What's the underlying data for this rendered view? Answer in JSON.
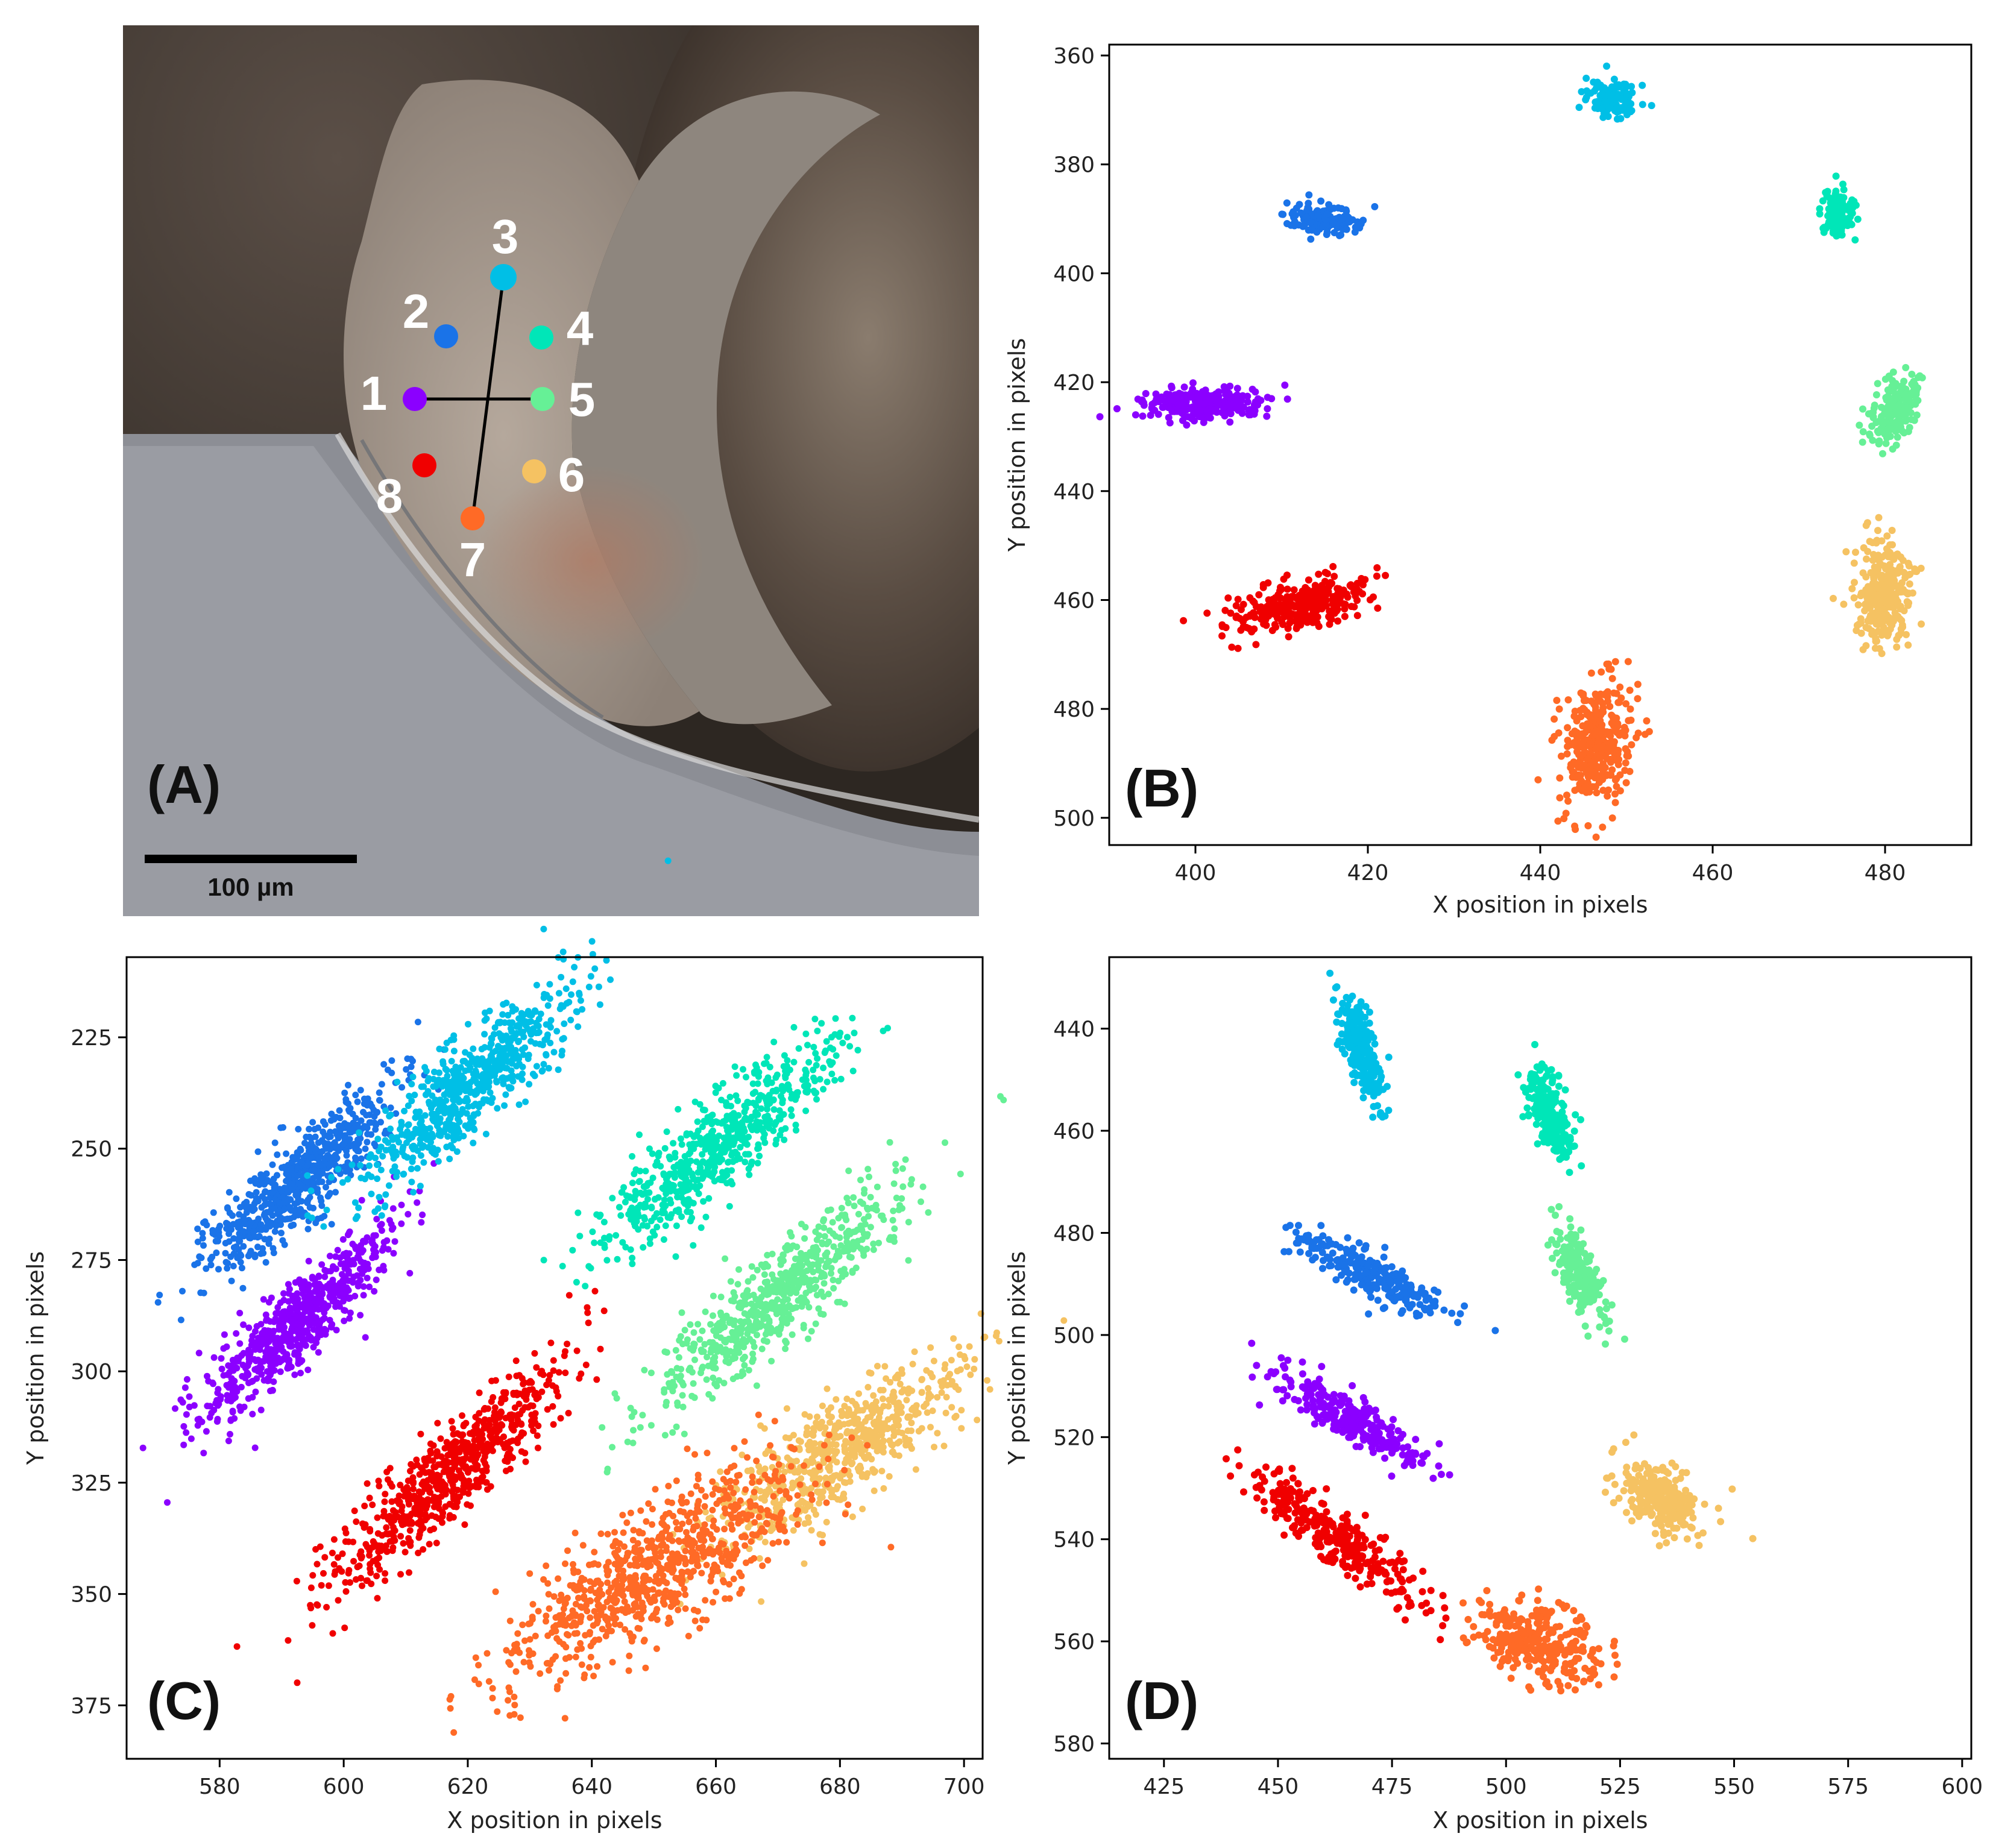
{
  "colors": {
    "1": "#8b00ff",
    "2": "#1a73e8",
    "3": "#00bfe6",
    "4": "#00e6b8",
    "5": "#66f096",
    "6": "#f5c262",
    "7": "#ff6a26",
    "8": "#f00000"
  },
  "panel_a": {
    "letter": "(A)",
    "scale_bar_label": "100 µm",
    "markers": [
      {
        "id": "1",
        "label": "1"
      },
      {
        "id": "2",
        "label": "2"
      },
      {
        "id": "3",
        "label": "3"
      },
      {
        "id": "4",
        "label": "4"
      },
      {
        "id": "5",
        "label": "5"
      },
      {
        "id": "6",
        "label": "6"
      },
      {
        "id": "7",
        "label": "7"
      },
      {
        "id": "8",
        "label": "8"
      }
    ]
  },
  "chart_data": [
    {
      "panel": "(B)",
      "type": "scatter",
      "xlabel": "X position in pixels",
      "ylabel": "Y position in pixels",
      "xlim": [
        390,
        490
      ],
      "ylim": [
        505,
        358
      ],
      "y_inverted": true,
      "xticks": [
        400,
        420,
        440,
        460,
        480
      ],
      "yticks": [
        360,
        380,
        400,
        420,
        440,
        460,
        480,
        500
      ],
      "clusters": [
        {
          "id": "1",
          "center": [
            401,
            424
          ],
          "spread": [
            3.5,
            1.5
          ],
          "angle": -0.05,
          "n": 260
        },
        {
          "id": "2",
          "center": [
            415,
            390
          ],
          "spread": [
            2.4,
            1.2
          ],
          "angle": 0.15,
          "n": 150
        },
        {
          "id": "3",
          "center": [
            448.5,
            368
          ],
          "spread": [
            1.4,
            1.5
          ],
          "angle": 0,
          "n": 130
        },
        {
          "id": "4",
          "center": [
            474.5,
            389
          ],
          "spread": [
            1.0,
            2.4
          ],
          "angle": 0,
          "n": 130
        },
        {
          "id": "5",
          "center": [
            481,
            425
          ],
          "spread": [
            1.2,
            3.5
          ],
          "angle": 0.25,
          "n": 180
        },
        {
          "id": "6",
          "center": [
            480,
            459
          ],
          "spread": [
            1.6,
            4.5
          ],
          "angle": 0,
          "n": 300
        },
        {
          "id": "7",
          "center": [
            446.5,
            486
          ],
          "spread": [
            2.0,
            6.0
          ],
          "angle": 0.1,
          "n": 320
        },
        {
          "id": "8",
          "center": [
            412,
            461
          ],
          "spread": [
            4.0,
            2.2
          ],
          "angle": -0.45,
          "n": 300
        }
      ]
    },
    {
      "panel": "(C)",
      "type": "scatter",
      "xlabel": "X position in pixels",
      "ylabel": "Y position in pixels",
      "xlim": [
        565,
        703
      ],
      "ylim": [
        387,
        207
      ],
      "y_inverted": true,
      "xticks": [
        580,
        600,
        620,
        640,
        660,
        680,
        700
      ],
      "yticks": [
        225,
        250,
        275,
        300,
        325,
        350,
        375
      ],
      "clusters": [
        {
          "id": "1",
          "center": [
            592,
            290
          ],
          "spread": [
            13.0,
            3.0
          ],
          "angle": -0.95,
          "n": 650
        },
        {
          "id": "2",
          "center": [
            593,
            257
          ],
          "spread": [
            12.5,
            3.0
          ],
          "angle": -0.95,
          "n": 650
        },
        {
          "id": "3",
          "center": [
            620,
            236
          ],
          "spread": [
            14.0,
            3.5
          ],
          "angle": -0.95,
          "n": 650
        },
        {
          "id": "4",
          "center": [
            660,
            250
          ],
          "spread": [
            15.5,
            3.5
          ],
          "angle": -0.9,
          "n": 650
        },
        {
          "id": "5",
          "center": [
            670,
            283
          ],
          "spread": [
            16.0,
            3.5
          ],
          "angle": -0.9,
          "n": 650
        },
        {
          "id": "6",
          "center": [
            680,
            318
          ],
          "spread": [
            14.0,
            4.5
          ],
          "angle": -0.8,
          "n": 650
        },
        {
          "id": "7",
          "center": [
            650,
            345
          ],
          "spread": [
            16.0,
            5.5
          ],
          "angle": -0.8,
          "n": 800
        },
        {
          "id": "8",
          "center": [
            617,
            323
          ],
          "spread": [
            15.5,
            3.5
          ],
          "angle": -0.95,
          "n": 700
        }
      ]
    },
    {
      "panel": "(D)",
      "type": "scatter",
      "xlabel": "X position in pixels",
      "ylabel": "Y position in pixels",
      "xlim": [
        413,
        602
      ],
      "ylim": [
        583,
        426
      ],
      "y_inverted": true,
      "xticks": [
        425,
        450,
        475,
        500,
        525,
        550,
        575,
        600
      ],
      "yticks": [
        440,
        460,
        480,
        500,
        520,
        540,
        560,
        580
      ],
      "clusters": [
        {
          "id": "1",
          "center": [
            465,
            516
          ],
          "spread": [
            9.0,
            2.0
          ],
          "angle": 0.5,
          "n": 260
        },
        {
          "id": "2",
          "center": [
            470,
            488
          ],
          "spread": [
            9.0,
            2.0
          ],
          "angle": 0.45,
          "n": 260
        },
        {
          "id": "3",
          "center": [
            468,
            444
          ],
          "spread": [
            5.5,
            1.8
          ],
          "angle": 1.25,
          "n": 220
        },
        {
          "id": "4",
          "center": [
            510,
            457
          ],
          "spread": [
            5.0,
            1.8
          ],
          "angle": 1.2,
          "n": 220
        },
        {
          "id": "5",
          "center": [
            516,
            488
          ],
          "spread": [
            5.0,
            1.8
          ],
          "angle": 1.1,
          "n": 220
        },
        {
          "id": "6",
          "center": [
            534,
            532
          ],
          "spread": [
            5.0,
            3.0
          ],
          "angle": 0.5,
          "n": 260
        },
        {
          "id": "7",
          "center": [
            507,
            560
          ],
          "spread": [
            7.0,
            3.5
          ],
          "angle": 0.3,
          "n": 300
        },
        {
          "id": "8",
          "center": [
            463,
            540
          ],
          "spread": [
            12.0,
            2.5
          ],
          "angle": 0.6,
          "n": 300
        }
      ]
    }
  ],
  "panel_letters": {
    "b": "(B)",
    "c": "(C)",
    "d": "(D)"
  }
}
